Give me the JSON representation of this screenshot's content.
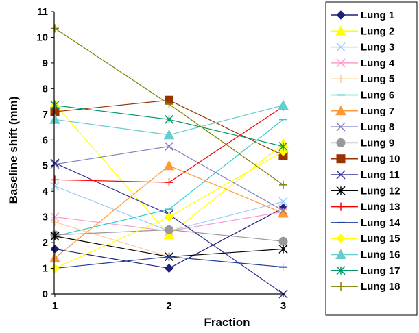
{
  "chart_data": {
    "type": "line",
    "title": "",
    "xlabel": "Fraction",
    "ylabel": "Baseline shift (mm)",
    "x": [
      1,
      2,
      3
    ],
    "x_tick_labels": [
      "1",
      "2",
      "3"
    ],
    "xlim": [
      1,
      3
    ],
    "ylim": [
      0,
      11
    ],
    "y_tick_labels": [
      "0",
      "1",
      "2",
      "3",
      "4",
      "5",
      "6",
      "7",
      "8",
      "9",
      "10",
      "11"
    ],
    "grid": false,
    "legend_position": "right",
    "series": [
      {
        "name": "Lung 1",
        "values": [
          1.75,
          1.0,
          3.35
        ],
        "color": "#1f1f7a",
        "marker": "diamond"
      },
      {
        "name": "Lung 2",
        "values": [
          7.4,
          2.3,
          5.85
        ],
        "color": "#ffff00",
        "marker": "triangle"
      },
      {
        "name": "Lung 3",
        "values": [
          4.2,
          2.45,
          3.6
        ],
        "color": "#99ccff",
        "marker": "x"
      },
      {
        "name": "Lung 4",
        "values": [
          3.0,
          2.45,
          3.2
        ],
        "color": "#ff99cc",
        "marker": "x"
      },
      {
        "name": "Lung 5",
        "values": [
          2.8,
          1.45,
          1.05
        ],
        "color": "#ffcc99",
        "marker": "plus"
      },
      {
        "name": "Lung 6",
        "values": [
          2.25,
          3.3,
          6.8
        ],
        "color": "#33cccc",
        "marker": "dash"
      },
      {
        "name": "Lung 7",
        "values": [
          1.4,
          5.0,
          3.15
        ],
        "color": "#ff9933",
        "marker": "triangle"
      },
      {
        "name": "Lung 8",
        "values": [
          5.05,
          5.75,
          3.25
        ],
        "color": "#8080c0",
        "marker": "x"
      },
      {
        "name": "Lung 9",
        "values": [
          2.3,
          2.5,
          2.05
        ],
        "color": "#999999",
        "marker": "circle"
      },
      {
        "name": "Lung 10",
        "values": [
          7.1,
          7.55,
          5.4
        ],
        "color": "#993300",
        "marker": "square"
      },
      {
        "name": "Lung 11",
        "values": [
          5.1,
          3.1,
          0.0
        ],
        "color": "#333399",
        "marker": "x"
      },
      {
        "name": "Lung 12",
        "values": [
          2.25,
          1.45,
          1.75
        ],
        "color": "#000000",
        "marker": "star"
      },
      {
        "name": "Lung 13",
        "values": [
          4.45,
          4.35,
          7.3
        ],
        "color": "#ff0000",
        "marker": "plus"
      },
      {
        "name": "Lung 14",
        "values": [
          1.0,
          1.45,
          1.05
        ],
        "color": "#1f3f9f",
        "marker": "dash"
      },
      {
        "name": "Lung 15",
        "values": [
          1.0,
          3.0,
          5.55
        ],
        "color": "#ffff00",
        "marker": "diamond"
      },
      {
        "name": "Lung 16",
        "values": [
          6.8,
          6.2,
          7.35
        ],
        "color": "#66cccc",
        "marker": "triangle"
      },
      {
        "name": "Lung 17",
        "values": [
          7.35,
          6.8,
          5.75
        ],
        "color": "#009966",
        "marker": "star"
      },
      {
        "name": "Lung 18",
        "values": [
          10.35,
          7.4,
          4.25
        ],
        "color": "#808000",
        "marker": "plus"
      }
    ]
  }
}
